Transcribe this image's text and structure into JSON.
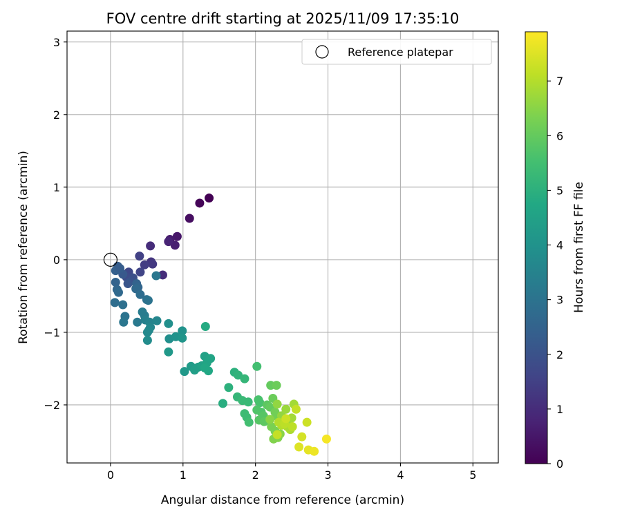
{
  "chart_data": {
    "type": "scatter",
    "title": "FOV centre drift starting at 2025/11/09 17:35:10",
    "xlabel": "Angular distance from reference (arcmin)",
    "ylabel": "Rotation from reference (arcmin)",
    "colorbar_label": "Hours from first FF file",
    "xlim": [
      -0.6,
      5.35
    ],
    "ylim": [
      -2.8,
      3.15
    ],
    "clim": [
      0,
      7.9
    ],
    "xticks": [
      0,
      1,
      2,
      3,
      4,
      5
    ],
    "xtick_labels": [
      "0",
      "1",
      "2",
      "3",
      "4",
      "5"
    ],
    "yticks": [
      -2,
      -1,
      0,
      1,
      2,
      3
    ],
    "ytick_labels": [
      "−2",
      "−1",
      "0",
      "1",
      "2",
      "3"
    ],
    "cticks": [
      0,
      1,
      2,
      3,
      4,
      5,
      6,
      7
    ],
    "ctick_labels": [
      "0",
      "1",
      "2",
      "3",
      "4",
      "5",
      "6",
      "7"
    ],
    "grid": true,
    "legend": {
      "position": "upper-right",
      "label": "Reference platepar"
    },
    "reference_point": {
      "x": 0,
      "y": 0
    },
    "points": [
      {
        "x": 1.36,
        "y": 0.85,
        "t": 0.0
      },
      {
        "x": 1.23,
        "y": 0.78,
        "t": 0.1
      },
      {
        "x": 1.09,
        "y": 0.57,
        "t": 0.3
      },
      {
        "x": 0.92,
        "y": 0.32,
        "t": 0.5
      },
      {
        "x": 0.82,
        "y": 0.28,
        "t": 0.6
      },
      {
        "x": 0.89,
        "y": 0.2,
        "t": 0.7
      },
      {
        "x": 0.8,
        "y": 0.25,
        "t": 0.8
      },
      {
        "x": 0.72,
        "y": -0.21,
        "t": 1.0
      },
      {
        "x": 0.55,
        "y": 0.19,
        "t": 1.0
      },
      {
        "x": 0.56,
        "y": -0.03,
        "t": 1.2
      },
      {
        "x": 0.58,
        "y": -0.06,
        "t": 1.3
      },
      {
        "x": 0.47,
        "y": -0.07,
        "t": 1.4
      },
      {
        "x": 0.4,
        "y": 0.05,
        "t": 1.5
      },
      {
        "x": 0.41,
        "y": -0.17,
        "t": 1.6
      },
      {
        "x": 0.25,
        "y": -0.17,
        "t": 1.7
      },
      {
        "x": 0.22,
        "y": -0.24,
        "t": 1.8
      },
      {
        "x": 0.31,
        "y": -0.25,
        "t": 1.9
      },
      {
        "x": 0.27,
        "y": -0.3,
        "t": 2.0
      },
      {
        "x": 0.24,
        "y": -0.33,
        "t": 2.1
      },
      {
        "x": 0.17,
        "y": -0.2,
        "t": 2.2
      },
      {
        "x": 0.1,
        "y": -0.09,
        "t": 2.3
      },
      {
        "x": 0.07,
        "y": -0.15,
        "t": 2.4
      },
      {
        "x": 0.13,
        "y": -0.12,
        "t": 2.3
      },
      {
        "x": 0.36,
        "y": -0.33,
        "t": 2.5
      },
      {
        "x": 0.38,
        "y": -0.38,
        "t": 2.6
      },
      {
        "x": 0.35,
        "y": -0.4,
        "t": 2.7
      },
      {
        "x": 0.07,
        "y": -0.31,
        "t": 2.5
      },
      {
        "x": 0.09,
        "y": -0.41,
        "t": 2.6
      },
      {
        "x": 0.11,
        "y": -0.45,
        "t": 2.7
      },
      {
        "x": 0.06,
        "y": -0.59,
        "t": 2.8
      },
      {
        "x": 0.17,
        "y": -0.62,
        "t": 2.9
      },
      {
        "x": 0.41,
        "y": -0.48,
        "t": 2.8
      },
      {
        "x": 0.5,
        "y": -0.55,
        "t": 2.9
      },
      {
        "x": 0.52,
        "y": -0.56,
        "t": 3.0
      },
      {
        "x": 0.63,
        "y": -0.22,
        "t": 3.1
      },
      {
        "x": 0.2,
        "y": -0.78,
        "t": 3.0
      },
      {
        "x": 0.18,
        "y": -0.86,
        "t": 3.1
      },
      {
        "x": 0.37,
        "y": -0.86,
        "t": 3.2
      },
      {
        "x": 0.44,
        "y": -0.72,
        "t": 3.3
      },
      {
        "x": 0.47,
        "y": -0.77,
        "t": 3.3
      },
      {
        "x": 0.48,
        "y": -0.83,
        "t": 3.4
      },
      {
        "x": 0.54,
        "y": -0.86,
        "t": 3.5
      },
      {
        "x": 0.64,
        "y": -0.84,
        "t": 3.6
      },
      {
        "x": 0.55,
        "y": -0.93,
        "t": 3.6
      },
      {
        "x": 0.51,
        "y": -1.0,
        "t": 3.7
      },
      {
        "x": 0.53,
        "y": -0.97,
        "t": 3.7
      },
      {
        "x": 0.51,
        "y": -1.11,
        "t": 3.8
      },
      {
        "x": 0.8,
        "y": -0.88,
        "t": 3.9
      },
      {
        "x": 0.81,
        "y": -1.09,
        "t": 3.9
      },
      {
        "x": 0.9,
        "y": -1.06,
        "t": 4.0
      },
      {
        "x": 0.99,
        "y": -0.98,
        "t": 4.0
      },
      {
        "x": 0.99,
        "y": -1.08,
        "t": 4.1
      },
      {
        "x": 0.8,
        "y": -1.27,
        "t": 4.2
      },
      {
        "x": 1.02,
        "y": -1.54,
        "t": 4.2
      },
      {
        "x": 1.11,
        "y": -1.47,
        "t": 4.3
      },
      {
        "x": 1.16,
        "y": -1.52,
        "t": 4.4
      },
      {
        "x": 1.21,
        "y": -1.48,
        "t": 4.4
      },
      {
        "x": 1.26,
        "y": -1.46,
        "t": 4.5
      },
      {
        "x": 1.3,
        "y": -1.33,
        "t": 4.5
      },
      {
        "x": 1.33,
        "y": -1.42,
        "t": 4.6
      },
      {
        "x": 1.38,
        "y": -1.36,
        "t": 4.6
      },
      {
        "x": 1.3,
        "y": -1.49,
        "t": 4.7
      },
      {
        "x": 1.35,
        "y": -1.53,
        "t": 4.7
      },
      {
        "x": 1.31,
        "y": -0.92,
        "t": 4.8
      },
      {
        "x": 1.55,
        "y": -1.98,
        "t": 4.9
      },
      {
        "x": 1.63,
        "y": -1.76,
        "t": 5.0
      },
      {
        "x": 1.71,
        "y": -1.55,
        "t": 5.0
      },
      {
        "x": 1.76,
        "y": -1.59,
        "t": 5.1
      },
      {
        "x": 1.85,
        "y": -1.64,
        "t": 5.2
      },
      {
        "x": 1.75,
        "y": -1.89,
        "t": 5.2
      },
      {
        "x": 1.82,
        "y": -1.94,
        "t": 5.3
      },
      {
        "x": 1.9,
        "y": -1.96,
        "t": 5.3
      },
      {
        "x": 1.85,
        "y": -2.12,
        "t": 5.4
      },
      {
        "x": 1.88,
        "y": -2.17,
        "t": 5.4
      },
      {
        "x": 1.91,
        "y": -2.24,
        "t": 5.5
      },
      {
        "x": 2.02,
        "y": -1.47,
        "t": 5.5
      },
      {
        "x": 2.04,
        "y": -1.93,
        "t": 5.6
      },
      {
        "x": 2.06,
        "y": -1.97,
        "t": 5.6
      },
      {
        "x": 2.02,
        "y": -2.07,
        "t": 5.7
      },
      {
        "x": 2.08,
        "y": -2.1,
        "t": 5.7
      },
      {
        "x": 2.11,
        "y": -2.15,
        "t": 5.8
      },
      {
        "x": 2.05,
        "y": -2.21,
        "t": 5.8
      },
      {
        "x": 2.12,
        "y": -2.23,
        "t": 5.9
      },
      {
        "x": 2.16,
        "y": -2.0,
        "t": 5.9
      },
      {
        "x": 2.2,
        "y": -2.03,
        "t": 6.0
      },
      {
        "x": 2.21,
        "y": -1.73,
        "t": 6.0
      },
      {
        "x": 2.29,
        "y": -1.73,
        "t": 6.1
      },
      {
        "x": 2.24,
        "y": -1.91,
        "t": 6.1
      },
      {
        "x": 2.27,
        "y": -2.1,
        "t": 6.2
      },
      {
        "x": 2.3,
        "y": -2.16,
        "t": 6.2
      },
      {
        "x": 2.22,
        "y": -2.3,
        "t": 6.3
      },
      {
        "x": 2.27,
        "y": -2.36,
        "t": 6.3
      },
      {
        "x": 2.25,
        "y": -2.47,
        "t": 6.4
      },
      {
        "x": 2.31,
        "y": -2.45,
        "t": 6.4
      },
      {
        "x": 2.34,
        "y": -2.4,
        "t": 6.5
      },
      {
        "x": 2.2,
        "y": -2.2,
        "t": 6.5
      },
      {
        "x": 2.3,
        "y": -1.99,
        "t": 6.6
      },
      {
        "x": 2.36,
        "y": -2.15,
        "t": 6.6
      },
      {
        "x": 2.42,
        "y": -2.06,
        "t": 6.7
      },
      {
        "x": 2.45,
        "y": -2.21,
        "t": 6.7
      },
      {
        "x": 2.5,
        "y": -2.18,
        "t": 6.8
      },
      {
        "x": 2.53,
        "y": -1.99,
        "t": 6.8
      },
      {
        "x": 2.44,
        "y": -2.3,
        "t": 6.9
      },
      {
        "x": 2.48,
        "y": -2.34,
        "t": 6.9
      },
      {
        "x": 2.36,
        "y": -2.28,
        "t": 7.0
      },
      {
        "x": 2.32,
        "y": -2.24,
        "t": 7.0
      },
      {
        "x": 2.4,
        "y": -2.26,
        "t": 7.1
      },
      {
        "x": 2.51,
        "y": -2.3,
        "t": 7.1
      },
      {
        "x": 2.56,
        "y": -2.06,
        "t": 7.2
      },
      {
        "x": 2.3,
        "y": -2.41,
        "t": 7.2
      },
      {
        "x": 2.42,
        "y": -2.19,
        "t": 7.3
      },
      {
        "x": 2.71,
        "y": -2.24,
        "t": 7.3
      },
      {
        "x": 2.64,
        "y": -2.44,
        "t": 7.4
      },
      {
        "x": 2.6,
        "y": -2.58,
        "t": 7.5
      },
      {
        "x": 2.73,
        "y": -2.62,
        "t": 7.6
      },
      {
        "x": 2.81,
        "y": -2.64,
        "t": 7.7
      },
      {
        "x": 2.98,
        "y": -2.47,
        "t": 7.8
      }
    ]
  }
}
